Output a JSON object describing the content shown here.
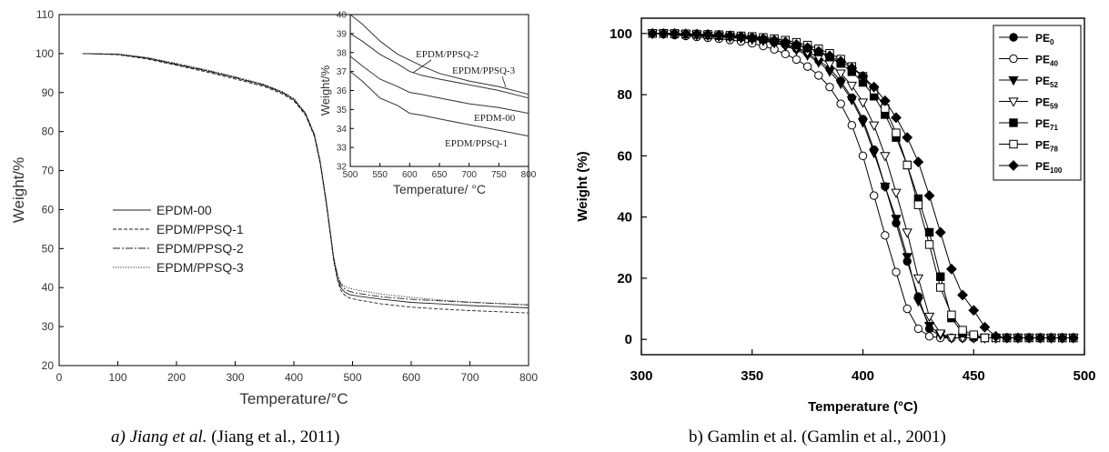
{
  "captions": {
    "a_prefix": "a) Jiang et al.",
    "a_ref": " (Jiang et al., 2011)",
    "b_full": "b) Gamlin et al. (Gamlin et al., 2001)"
  },
  "chart_data": [
    {
      "type": "line",
      "title": "",
      "xlabel": "Temperature/°C",
      "ylabel": "Weight/%",
      "xlim": [
        0,
        800
      ],
      "ylim": [
        20,
        110
      ],
      "xticks": [
        0,
        100,
        200,
        300,
        400,
        500,
        600,
        700,
        800
      ],
      "yticks": [
        20,
        30,
        40,
        50,
        60,
        70,
        80,
        90,
        100,
        110
      ],
      "legend_position": "left-center",
      "series": [
        {
          "name": "EPDM-00",
          "style": "solid",
          "x": [
            40,
            100,
            150,
            200,
            250,
            300,
            350,
            380,
            400,
            420,
            435,
            445,
            455,
            462,
            468,
            475,
            480,
            487,
            495,
            510,
            550,
            600,
            650,
            700,
            750,
            800
          ],
          "y": [
            100,
            99.8,
            98.8,
            97.2,
            95.6,
            93.8,
            91.8,
            90.0,
            88.2,
            84.5,
            79.0,
            72.0,
            62.0,
            54.0,
            47.0,
            42.0,
            40.0,
            38.8,
            38.2,
            37.8,
            37.0,
            36.2,
            35.8,
            35.4,
            35.1,
            34.8
          ]
        },
        {
          "name": "EPDM/PPSQ-1",
          "style": "dashed",
          "x": [
            40,
            100,
            150,
            200,
            250,
            300,
            350,
            380,
            400,
            420,
            435,
            445,
            455,
            462,
            468,
            475,
            480,
            487,
            495,
            510,
            550,
            600,
            650,
            700,
            750,
            800
          ],
          "y": [
            100,
            99.7,
            98.6,
            97.0,
            95.3,
            93.5,
            91.5,
            89.7,
            87.9,
            84.2,
            78.7,
            71.7,
            61.7,
            53.7,
            46.7,
            41.5,
            39.3,
            38.0,
            37.3,
            36.8,
            35.8,
            35.0,
            34.5,
            34.1,
            33.8,
            33.5
          ]
        },
        {
          "name": "EPDM/PPSQ-2",
          "style": "dashdot",
          "x": [
            40,
            100,
            150,
            200,
            250,
            300,
            350,
            380,
            400,
            420,
            435,
            445,
            455,
            462,
            468,
            475,
            480,
            487,
            495,
            510,
            550,
            600,
            650,
            700,
            750,
            800
          ],
          "y": [
            100,
            99.8,
            98.9,
            97.3,
            95.7,
            93.9,
            91.9,
            90.1,
            88.3,
            84.6,
            79.2,
            72.2,
            62.3,
            54.3,
            47.4,
            42.6,
            40.8,
            39.6,
            39.0,
            38.5,
            37.6,
            37.0,
            36.6,
            36.2,
            35.9,
            35.6
          ]
        },
        {
          "name": "EPDM/PPSQ-3",
          "style": "dotted",
          "x": [
            40,
            100,
            150,
            200,
            250,
            300,
            350,
            380,
            400,
            420,
            435,
            445,
            455,
            462,
            468,
            475,
            480,
            487,
            495,
            510,
            550,
            600,
            650,
            700,
            750,
            800
          ],
          "y": [
            100,
            99.9,
            99.0,
            97.5,
            95.9,
            94.1,
            92.1,
            90.3,
            88.5,
            84.8,
            79.4,
            72.5,
            62.6,
            54.6,
            47.8,
            43.0,
            41.3,
            40.2,
            39.8,
            39.3,
            38.3,
            37.5,
            36.8,
            36.3,
            35.9,
            35.5
          ]
        }
      ],
      "inset": {
        "xlabel": "Temperature/ °C",
        "ylabel": "Weight/%",
        "xlim": [
          500,
          800
        ],
        "ylim": [
          32,
          40
        ],
        "xticks": [
          500,
          550,
          600,
          650,
          700,
          750,
          800
        ],
        "yticks": [
          32,
          33,
          34,
          35,
          36,
          37,
          38,
          39,
          40
        ],
        "annotations": [
          {
            "text": "EPDM/PPSQ-2"
          },
          {
            "text": "EPDM/PPSQ-3"
          },
          {
            "text": "EPDM-00"
          },
          {
            "text": "EPDM/PPSQ-1"
          }
        ],
        "series": [
          {
            "name": "EPDM/PPSQ-3",
            "x": [
              500,
              520,
              550,
              580,
              600,
              620,
              650,
              700,
              750,
              800
            ],
            "y": [
              40.0,
              39.5,
              38.6,
              37.9,
              37.6,
              37.3,
              36.9,
              36.5,
              36.2,
              35.8
            ]
          },
          {
            "name": "EPDM/PPSQ-2",
            "x": [
              500,
              520,
              550,
              580,
              600,
              620,
              650,
              700,
              750,
              800
            ],
            "y": [
              39.0,
              38.6,
              37.9,
              37.4,
              37.0,
              36.8,
              36.6,
              36.3,
              36.0,
              35.6
            ]
          },
          {
            "name": "EPDM-00",
            "x": [
              500,
              520,
              550,
              580,
              600,
              620,
              650,
              700,
              750,
              800
            ],
            "y": [
              37.8,
              37.3,
              36.6,
              36.2,
              35.9,
              35.8,
              35.6,
              35.3,
              35.1,
              34.8
            ]
          },
          {
            "name": "EPDM/PPSQ-1",
            "x": [
              500,
              520,
              550,
              580,
              600,
              620,
              650,
              700,
              750,
              800
            ],
            "y": [
              37.0,
              36.5,
              35.6,
              35.2,
              34.8,
              34.7,
              34.5,
              34.2,
              33.9,
              33.6
            ]
          }
        ]
      }
    },
    {
      "type": "line",
      "title": "",
      "xlabel": "Temperature (°C)",
      "ylabel": "Weight (%)",
      "xlim": [
        300,
        500
      ],
      "ylim": [
        -5,
        105
      ],
      "xticks": [
        300,
        350,
        400,
        450,
        500
      ],
      "yticks": [
        0,
        20,
        40,
        60,
        80,
        100
      ],
      "legend_position": "top-right",
      "series": [
        {
          "name": "PE",
          "sub": "0",
          "marker": "circle-filled",
          "x": [
            305,
            310,
            315,
            320,
            325,
            330,
            335,
            340,
            345,
            350,
            355,
            360,
            365,
            370,
            375,
            380,
            385,
            390,
            395,
            400,
            405,
            410,
            415,
            420,
            425,
            430,
            435,
            440,
            445,
            450,
            455,
            460,
            465,
            470,
            475,
            480,
            485,
            490,
            495
          ],
          "y": [
            100,
            100,
            99.6,
            99.4,
            99.2,
            99.0,
            98.8,
            98.6,
            98.4,
            98.1,
            97.7,
            97.1,
            96.3,
            95.0,
            93.5,
            91.2,
            88.5,
            84.5,
            79.0,
            72.0,
            62.0,
            50.0,
            38.0,
            25.5,
            14.0,
            3.5,
            1,
            0.5,
            0.5,
            0.5,
            0.5,
            0.5,
            0.5,
            0.5,
            0.5,
            0.5,
            0.5,
            0.5,
            0.5
          ]
        },
        {
          "name": "PE",
          "sub": "40",
          "marker": "circle-open",
          "x": [
            305,
            310,
            315,
            320,
            325,
            330,
            335,
            340,
            345,
            350,
            355,
            360,
            365,
            370,
            375,
            380,
            385,
            390,
            395,
            400,
            405,
            410,
            415,
            420,
            425,
            430,
            435,
            440,
            445,
            450,
            455,
            460,
            465,
            470,
            475,
            480,
            485,
            490,
            495
          ],
          "y": [
            100,
            99.8,
            99.5,
            99.2,
            98.9,
            98.6,
            98.3,
            97.9,
            97.4,
            96.8,
            95.9,
            94.8,
            93.3,
            91.5,
            89.2,
            86.3,
            82.5,
            77.0,
            70.0,
            60.0,
            47.0,
            34.0,
            22.0,
            10.0,
            3.5,
            1,
            0.5,
            0.5,
            0.5,
            0.5,
            0.5,
            0.5,
            0.5,
            0.5,
            0.5,
            0.5,
            0.5,
            0.5,
            0.5
          ]
        },
        {
          "name": "PE",
          "sub": "52",
          "marker": "triangle-down-filled",
          "x": [
            305,
            310,
            315,
            320,
            325,
            330,
            335,
            340,
            345,
            350,
            355,
            360,
            365,
            370,
            375,
            380,
            385,
            390,
            395,
            400,
            405,
            410,
            415,
            420,
            425,
            430,
            435,
            440,
            445,
            450,
            455,
            460,
            465,
            470,
            475,
            480,
            485,
            490,
            495
          ],
          "y": [
            100,
            100,
            99.8,
            99.7,
            99.5,
            99.3,
            99.1,
            98.8,
            98.5,
            98.1,
            97.6,
            96.9,
            95.9,
            94.6,
            92.9,
            90.6,
            87.6,
            83.6,
            78.3,
            71.0,
            61.0,
            50.0,
            39.5,
            27.0,
            12.5,
            4.5,
            1.5,
            0.5,
            0.5,
            0.5,
            0.5,
            0.5,
            0.5,
            0.5,
            0.5,
            0.5,
            0.5,
            0.5,
            0.5
          ]
        },
        {
          "name": "PE",
          "sub": "59",
          "marker": "triangle-down-open",
          "x": [
            305,
            310,
            315,
            320,
            325,
            330,
            335,
            340,
            345,
            350,
            355,
            360,
            365,
            370,
            375,
            380,
            385,
            390,
            395,
            400,
            405,
            410,
            415,
            420,
            425,
            430,
            435,
            440,
            445,
            450,
            455,
            460,
            465,
            470,
            475,
            480,
            485,
            490,
            495
          ],
          "y": [
            100,
            100,
            99.9,
            99.8,
            99.6,
            99.4,
            99.2,
            99.0,
            98.7,
            98.4,
            97.9,
            97.3,
            96.5,
            95.4,
            94.0,
            92.2,
            90.0,
            87.0,
            83.0,
            77.5,
            70.0,
            60.0,
            48.0,
            35.0,
            20.0,
            7.5,
            2.0,
            0.5,
            0.5,
            0.5,
            0.5,
            0.5,
            0.5,
            0.5,
            0.5,
            0.5,
            0.5,
            0.5,
            0.5
          ]
        },
        {
          "name": "PE",
          "sub": "71",
          "marker": "square-filled",
          "x": [
            305,
            310,
            315,
            320,
            325,
            330,
            335,
            340,
            345,
            350,
            355,
            360,
            365,
            370,
            375,
            380,
            385,
            390,
            395,
            400,
            405,
            410,
            415,
            420,
            425,
            430,
            435,
            440,
            445,
            450,
            455,
            460,
            465,
            470,
            475,
            480,
            485,
            490,
            495
          ],
          "y": [
            100,
            100,
            99.9,
            99.8,
            99.7,
            99.5,
            99.3,
            99.1,
            98.9,
            98.6,
            98.2,
            97.7,
            97.1,
            96.3,
            95.3,
            94.0,
            92.3,
            90.2,
            87.5,
            84.0,
            79.5,
            73.5,
            66.0,
            57.0,
            46.0,
            35.0,
            20.5,
            7.0,
            2.0,
            1,
            0.5,
            0.5,
            0.5,
            0.5,
            0.5,
            0.5,
            0.5,
            0.5,
            0.5
          ]
        },
        {
          "name": "PE",
          "sub": "78",
          "marker": "square-open",
          "x": [
            305,
            310,
            315,
            320,
            325,
            330,
            335,
            340,
            345,
            350,
            355,
            360,
            365,
            370,
            375,
            380,
            385,
            390,
            395,
            400,
            405,
            410,
            415,
            420,
            425,
            430,
            435,
            440,
            445,
            450,
            455,
            460,
            465,
            470,
            475,
            480,
            485,
            490,
            495
          ],
          "y": [
            100,
            100,
            100,
            99.9,
            99.8,
            99.7,
            99.6,
            99.4,
            99.2,
            99.0,
            98.7,
            98.3,
            97.8,
            97.1,
            96.2,
            95.0,
            93.5,
            91.6,
            89.2,
            86.0,
            81.5,
            75.5,
            67.5,
            57.0,
            44.0,
            31.0,
            17.0,
            8.0,
            3.0,
            1.5,
            0.5,
            0.5,
            0.5,
            0.5,
            0.5,
            0.5,
            0.5,
            0.5,
            0.5
          ]
        },
        {
          "name": "PE",
          "sub": "100",
          "marker": "diamond-filled",
          "x": [
            305,
            310,
            315,
            320,
            325,
            330,
            335,
            340,
            345,
            350,
            355,
            360,
            365,
            370,
            375,
            380,
            385,
            390,
            395,
            400,
            405,
            410,
            415,
            420,
            425,
            430,
            435,
            440,
            445,
            450,
            455,
            460,
            465,
            470,
            475,
            480,
            485,
            490,
            495
          ],
          "y": [
            100,
            100,
            100,
            99.9,
            99.8,
            99.7,
            99.5,
            99.3,
            99.0,
            98.7,
            98.3,
            97.8,
            97.2,
            96.4,
            95.4,
            94.2,
            92.7,
            90.9,
            88.7,
            86.0,
            82.5,
            78.0,
            72.5,
            66.0,
            58.0,
            47.0,
            35.0,
            23.0,
            14.5,
            9.5,
            4.0,
            1,
            0.5,
            0.5,
            0.5,
            0.5,
            0.5,
            0.5,
            0.5
          ]
        }
      ]
    }
  ]
}
